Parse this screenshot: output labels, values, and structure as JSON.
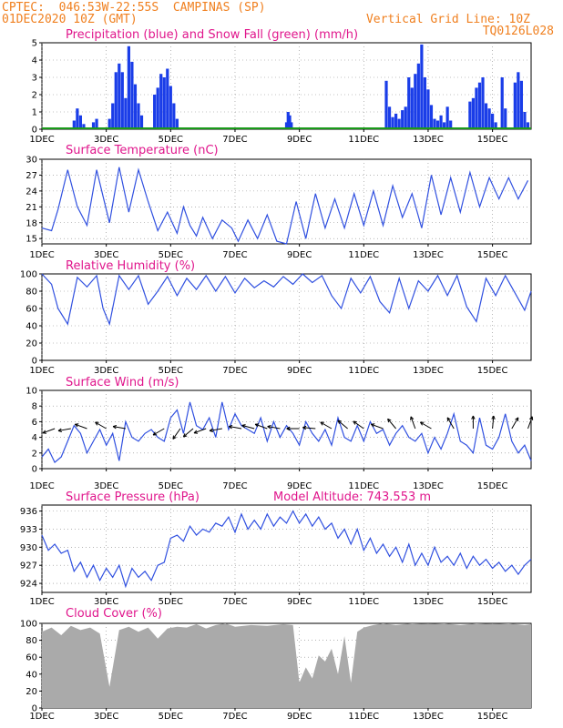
{
  "header": {
    "line1": "CPTEC:  046:53W-22:55S  CAMPINAS (SP)",
    "line2": "01DEC2020 10Z (GMT)",
    "grid_note": "Vertical Grid Line: 10Z",
    "run_id": "TQ0126L028"
  },
  "colors": {
    "header": "#f08020",
    "title": "#e0168c",
    "line": "#3050e0",
    "precip": "#1a3de8",
    "snow": "#1a9a1a",
    "cloud": "#aaaaaa",
    "wind_arrow": "#000000"
  },
  "x_axis": {
    "tick_labels": [
      "1DEC",
      "3DEC",
      "5DEC",
      "7DEC",
      "9DEC",
      "11DEC",
      "13DEC",
      "15DEC"
    ],
    "tick_days": [
      1,
      3,
      5,
      7,
      9,
      11,
      13,
      15
    ],
    "range_days": [
      1,
      16.2
    ]
  },
  "chart_data": [
    {
      "type": "bar",
      "title": "Precipitation (blue) and Snow Fall (green) (mm/h)",
      "ylim": [
        0,
        5
      ],
      "yticks": [
        0,
        1,
        2,
        3,
        4,
        5
      ],
      "grid": true,
      "series": [
        {
          "name": "Precipitation",
          "x": [
            2.0,
            2.1,
            2.2,
            2.3,
            2.6,
            2.7,
            3.1,
            3.2,
            3.3,
            3.4,
            3.5,
            3.6,
            3.7,
            3.8,
            3.9,
            4.0,
            4.1,
            4.5,
            4.6,
            4.7,
            4.8,
            4.9,
            5.0,
            5.1,
            5.2,
            8.6,
            8.65,
            8.7,
            8.75,
            11.7,
            11.8,
            11.9,
            12.0,
            12.1,
            12.2,
            12.3,
            12.4,
            12.5,
            12.6,
            12.7,
            12.8,
            12.9,
            13.0,
            13.1,
            13.2,
            13.3,
            13.4,
            13.5,
            13.6,
            13.7,
            14.3,
            14.4,
            14.5,
            14.6,
            14.7,
            14.8,
            14.9,
            15.0,
            15.1,
            15.3,
            15.4,
            15.7,
            15.8,
            15.9,
            16.0,
            16.1
          ],
          "values": [
            0.5,
            1.2,
            0.8,
            0.3,
            0.4,
            0.6,
            0.6,
            1.5,
            3.3,
            3.8,
            3.3,
            1.8,
            4.8,
            3.9,
            2.6,
            1.5,
            0.8,
            2.0,
            2.4,
            3.2,
            3.0,
            3.5,
            2.5,
            1.5,
            0.6,
            0.4,
            1.0,
            0.8,
            0.4,
            2.8,
            1.3,
            0.7,
            0.9,
            0.6,
            1.1,
            1.3,
            3.0,
            2.4,
            3.2,
            3.8,
            4.9,
            3.0,
            2.3,
            1.4,
            0.6,
            0.5,
            0.8,
            0.4,
            1.3,
            0.5,
            1.6,
            1.8,
            2.4,
            2.7,
            3.0,
            1.5,
            1.2,
            0.9,
            0.4,
            3.0,
            1.2,
            2.7,
            3.3,
            2.8,
            1.0,
            0.4
          ]
        },
        {
          "name": "Snow Fall",
          "x": [
            1,
            16.2
          ],
          "values": [
            0,
            0
          ]
        }
      ]
    },
    {
      "type": "line",
      "title": "Surface Temperature (nC)",
      "ylim": [
        14,
        30
      ],
      "yticks": [
        15,
        18,
        21,
        24,
        27,
        30
      ],
      "grid": true,
      "series": [
        {
          "name": "",
          "x": [
            1.0,
            1.3,
            1.5,
            1.8,
            2.1,
            2.4,
            2.7,
            2.9,
            3.1,
            3.4,
            3.7,
            4.0,
            4.3,
            4.6,
            4.9,
            5.2,
            5.4,
            5.6,
            5.8,
            6.0,
            6.3,
            6.6,
            6.9,
            7.1,
            7.4,
            7.7,
            8.0,
            8.3,
            8.6,
            8.9,
            9.2,
            9.5,
            9.8,
            10.1,
            10.4,
            10.7,
            11.0,
            11.3,
            11.6,
            11.9,
            12.2,
            12.5,
            12.8,
            13.1,
            13.4,
            13.7,
            14.0,
            14.3,
            14.6,
            14.9,
            15.2,
            15.5,
            15.8,
            16.1
          ],
          "values": [
            17.0,
            16.5,
            20.5,
            28.0,
            21.0,
            17.5,
            28.0,
            23.0,
            18.0,
            28.5,
            20.0,
            28.0,
            22.0,
            16.5,
            20.0,
            16.0,
            21.0,
            17.5,
            15.5,
            19.0,
            15.0,
            18.5,
            17.0,
            14.5,
            18.5,
            15.0,
            19.5,
            14.5,
            14.0,
            22.0,
            15.0,
            23.5,
            17.0,
            22.5,
            17.0,
            23.5,
            17.5,
            24.0,
            17.5,
            25.0,
            19.0,
            23.5,
            17.0,
            27.0,
            19.5,
            26.5,
            20.0,
            27.5,
            21.0,
            26.5,
            22.5,
            26.5,
            22.5,
            26.0
          ]
        }
      ]
    },
    {
      "type": "line",
      "title": "Relative Humidity (%)",
      "ylim": [
        0,
        100
      ],
      "yticks": [
        0,
        20,
        40,
        60,
        80,
        100
      ],
      "grid": true,
      "series": [
        {
          "name": "",
          "x": [
            1.0,
            1.3,
            1.5,
            1.8,
            2.1,
            2.4,
            2.7,
            2.9,
            3.1,
            3.4,
            3.7,
            4.0,
            4.3,
            4.6,
            4.9,
            5.2,
            5.5,
            5.8,
            6.1,
            6.4,
            6.7,
            7.0,
            7.3,
            7.6,
            7.9,
            8.2,
            8.5,
            8.8,
            9.1,
            9.4,
            9.7,
            10.0,
            10.3,
            10.6,
            10.9,
            11.2,
            11.5,
            11.8,
            12.1,
            12.4,
            12.7,
            13.0,
            13.3,
            13.6,
            13.9,
            14.2,
            14.5,
            14.8,
            15.1,
            15.4,
            15.7,
            16.0,
            16.2
          ],
          "values": [
            100,
            88,
            60,
            42,
            96,
            85,
            98,
            60,
            42,
            98,
            82,
            98,
            65,
            80,
            97,
            75,
            95,
            82,
            98,
            80,
            97,
            78,
            95,
            84,
            92,
            85,
            97,
            88,
            100,
            90,
            98,
            75,
            60,
            95,
            78,
            97,
            68,
            55,
            95,
            60,
            92,
            80,
            98,
            75,
            98,
            62,
            45,
            95,
            75,
            98,
            78,
            58,
            80
          ]
        }
      ]
    },
    {
      "type": "line",
      "title": "Surface Wind (m/s)",
      "ylim": [
        0,
        10
      ],
      "yticks": [
        0,
        2,
        4,
        6,
        8,
        10
      ],
      "grid": true,
      "series": [
        {
          "name": "",
          "x": [
            1.0,
            1.2,
            1.4,
            1.6,
            1.8,
            2.0,
            2.2,
            2.4,
            2.6,
            2.8,
            3.0,
            3.2,
            3.4,
            3.6,
            3.8,
            4.0,
            4.2,
            4.4,
            4.6,
            4.8,
            5.0,
            5.2,
            5.4,
            5.6,
            5.8,
            6.0,
            6.2,
            6.4,
            6.6,
            6.8,
            7.0,
            7.2,
            7.4,
            7.6,
            7.8,
            8.0,
            8.2,
            8.4,
            8.6,
            8.8,
            9.0,
            9.2,
            9.4,
            9.6,
            9.8,
            10.0,
            10.2,
            10.4,
            10.6,
            10.8,
            11.0,
            11.2,
            11.4,
            11.6,
            11.8,
            12.0,
            12.2,
            12.4,
            12.6,
            12.8,
            13.0,
            13.2,
            13.4,
            13.6,
            13.8,
            14.0,
            14.2,
            14.4,
            14.6,
            14.8,
            15.0,
            15.2,
            15.4,
            15.6,
            15.8,
            16.0,
            16.2
          ],
          "values": [
            1.5,
            2.5,
            0.8,
            1.5,
            3.5,
            5.5,
            4.5,
            2.0,
            3.5,
            5.0,
            3.0,
            4.5,
            1.0,
            6.0,
            4.0,
            3.5,
            4.5,
            5.0,
            4.0,
            3.5,
            6.5,
            7.5,
            4.5,
            8.5,
            5.5,
            5.0,
            6.5,
            4.0,
            8.5,
            5.0,
            7.0,
            5.5,
            5.0,
            4.5,
            6.5,
            3.5,
            6.0,
            4.0,
            5.5,
            4.5,
            3.0,
            6.0,
            4.5,
            3.5,
            5.0,
            3.0,
            6.5,
            4.0,
            3.5,
            5.5,
            3.5,
            6.0,
            4.5,
            5.0,
            3.0,
            4.5,
            5.5,
            4.0,
            3.5,
            4.5,
            2.0,
            4.0,
            2.5,
            4.5,
            7.0,
            3.5,
            3.0,
            2.0,
            6.5,
            3.0,
            2.5,
            4.0,
            7.0,
            3.5,
            2.0,
            3.0,
            1.0
          ]
        }
      ]
    },
    {
      "type": "line",
      "title": "Surface Pressure (hPa)",
      "annotation": "Model Altitude: 743.553 m",
      "ylim": [
        922.5,
        937
      ],
      "yticks": [
        924,
        927,
        930,
        933,
        936
      ],
      "grid": true,
      "series": [
        {
          "name": "",
          "x": [
            1.0,
            1.2,
            1.4,
            1.6,
            1.8,
            2.0,
            2.2,
            2.4,
            2.6,
            2.8,
            3.0,
            3.2,
            3.4,
            3.6,
            3.8,
            4.0,
            4.2,
            4.4,
            4.6,
            4.8,
            5.0,
            5.2,
            5.4,
            5.6,
            5.8,
            6.0,
            6.2,
            6.4,
            6.6,
            6.8,
            7.0,
            7.2,
            7.4,
            7.6,
            7.8,
            8.0,
            8.2,
            8.4,
            8.6,
            8.8,
            9.0,
            9.2,
            9.4,
            9.6,
            9.8,
            10.0,
            10.2,
            10.4,
            10.6,
            10.8,
            11.0,
            11.2,
            11.4,
            11.6,
            11.8,
            12.0,
            12.2,
            12.4,
            12.6,
            12.8,
            13.0,
            13.2,
            13.4,
            13.6,
            13.8,
            14.0,
            14.2,
            14.4,
            14.6,
            14.8,
            15.0,
            15.2,
            15.4,
            15.6,
            15.8,
            16.0,
            16.2
          ],
          "values": [
            932.0,
            929.5,
            930.5,
            929.0,
            929.5,
            926.0,
            927.5,
            925.0,
            927.0,
            924.5,
            926.5,
            925.0,
            927.0,
            923.5,
            926.5,
            925.0,
            926.0,
            924.5,
            927.0,
            927.5,
            931.5,
            932.0,
            931.0,
            933.5,
            932.0,
            933.0,
            932.5,
            934.0,
            933.5,
            935.0,
            932.5,
            935.5,
            933.0,
            934.5,
            933.0,
            935.5,
            933.5,
            935.0,
            934.0,
            936.0,
            934.0,
            935.5,
            933.5,
            935.0,
            933.0,
            934.0,
            931.5,
            933.0,
            930.5,
            933.0,
            929.5,
            931.5,
            929.0,
            930.5,
            928.5,
            930.0,
            927.5,
            930.5,
            927.0,
            929.0,
            927.0,
            930.0,
            927.5,
            928.5,
            927.0,
            929.0,
            926.5,
            928.5,
            927.0,
            928.0,
            926.5,
            927.5,
            926.0,
            927.0,
            925.5,
            927.0,
            928.0
          ]
        }
      ]
    },
    {
      "type": "area",
      "title": "Cloud Cover (%)",
      "ylim": [
        0,
        100
      ],
      "yticks": [
        0,
        20,
        40,
        60,
        80,
        100
      ],
      "grid": true,
      "series": [
        {
          "name": "",
          "x": [
            1.0,
            1.3,
            1.6,
            1.9,
            2.2,
            2.5,
            2.8,
            3.1,
            3.4,
            3.7,
            4.0,
            4.3,
            4.6,
            4.9,
            5.2,
            5.5,
            5.8,
            6.1,
            6.4,
            6.7,
            7.0,
            7.5,
            8.0,
            8.5,
            8.8,
            9.0,
            9.2,
            9.4,
            9.6,
            9.8,
            10.0,
            10.2,
            10.4,
            10.6,
            10.8,
            11.0,
            11.3,
            11.6,
            12.0,
            12.5,
            13.0,
            13.5,
            14.0,
            14.5,
            15.0,
            15.5,
            16.0,
            16.2
          ],
          "values": [
            90,
            95,
            86,
            97,
            92,
            95,
            88,
            25,
            92,
            96,
            90,
            95,
            82,
            94,
            96,
            95,
            99,
            94,
            98,
            100,
            96,
            98,
            97,
            99,
            98,
            30,
            48,
            35,
            62,
            55,
            70,
            40,
            85,
            30,
            90,
            95,
            98,
            100,
            98,
            100,
            99,
            100,
            98,
            100,
            99,
            100,
            98,
            99
          ]
        }
      ]
    }
  ]
}
